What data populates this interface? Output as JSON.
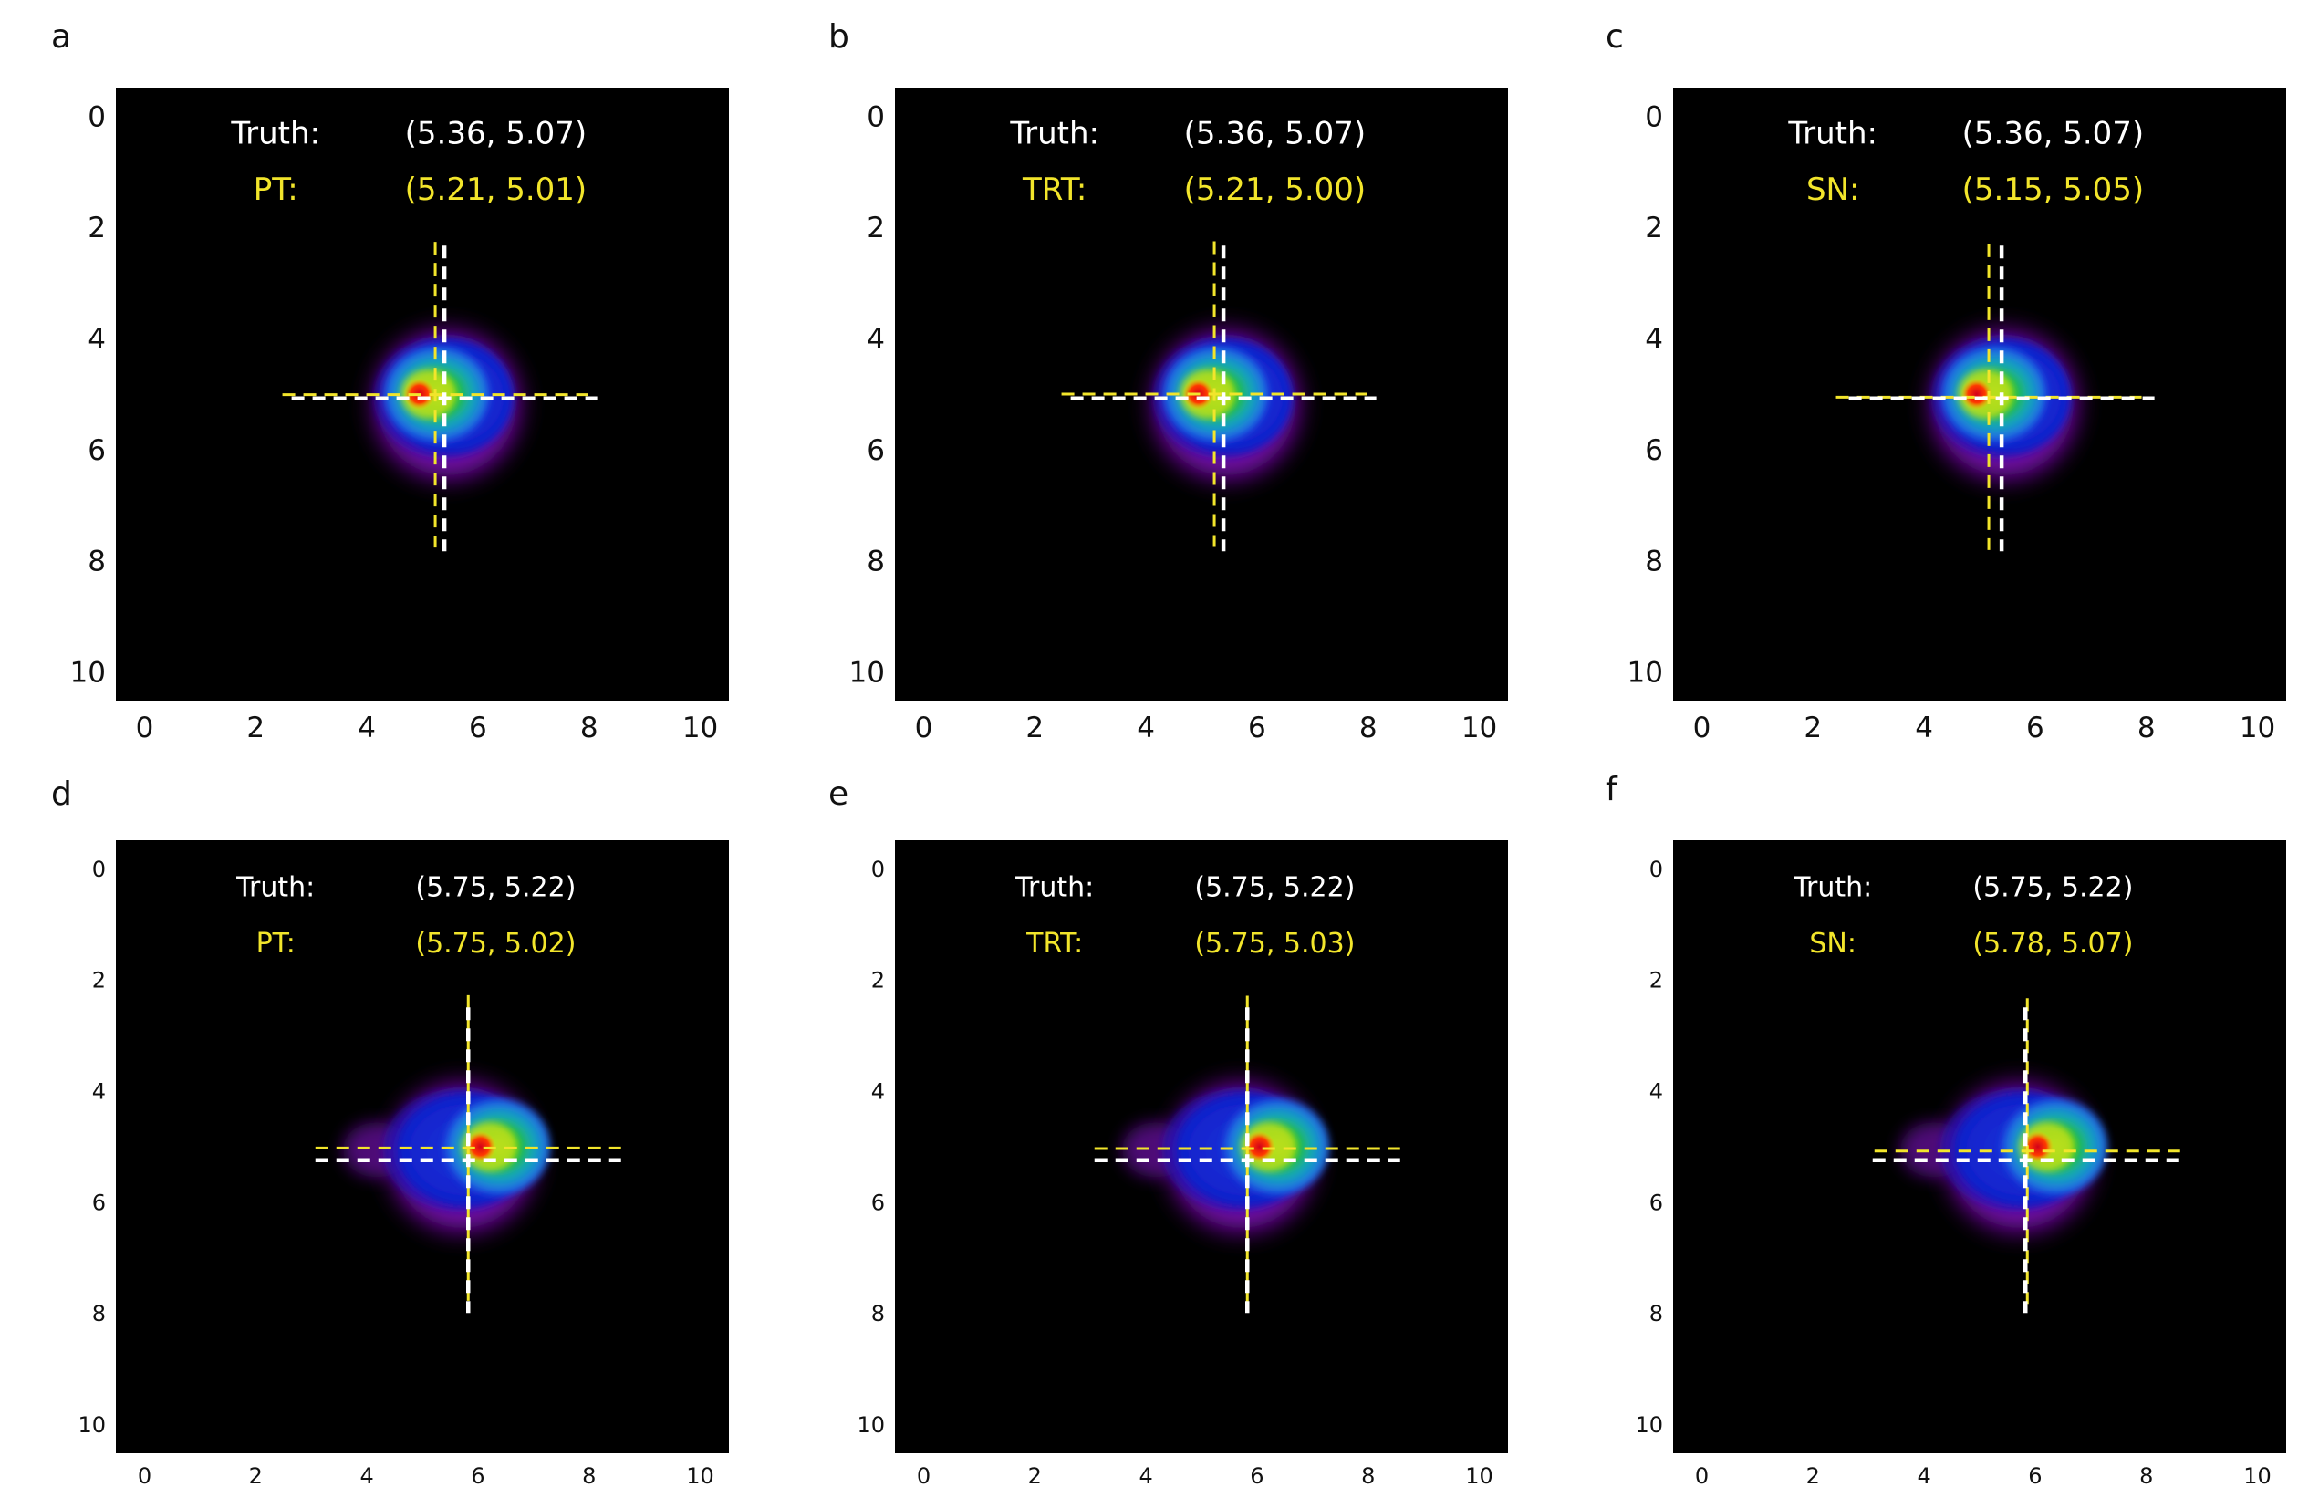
{
  "chart_data": [
    {
      "type": "heatmap",
      "panel": "a",
      "xlim": [
        0,
        10
      ],
      "ylim": [
        0,
        10
      ],
      "y_inverted": true,
      "xticks": [
        "0",
        "2",
        "4",
        "6",
        "8",
        "10"
      ],
      "yticks": [
        "0",
        "2",
        "4",
        "6",
        "8",
        "10"
      ],
      "colormap": "nipy_spectral (black → purple → blue → green → yellow → red)",
      "peak": {
        "x": 5.0,
        "y": 5.0
      },
      "truth": {
        "label": "Truth:",
        "text": "(5.36, 5.07)",
        "x": 5.36,
        "y": 5.07,
        "color": "#ffffff"
      },
      "estimate": {
        "label": "PT:",
        "text": "(5.21, 5.01)",
        "x": 5.21,
        "y": 5.01,
        "color": "#f2e52b"
      }
    },
    {
      "type": "heatmap",
      "panel": "b",
      "xlim": [
        0,
        10
      ],
      "ylim": [
        0,
        10
      ],
      "y_inverted": true,
      "xticks": [
        "0",
        "2",
        "4",
        "6",
        "8",
        "10"
      ],
      "yticks": [
        "0",
        "2",
        "4",
        "6",
        "8",
        "10"
      ],
      "colormap": "nipy_spectral (black → purple → blue → green → yellow → red)",
      "peak": {
        "x": 5.0,
        "y": 5.0
      },
      "truth": {
        "label": "Truth:",
        "text": "(5.36, 5.07)",
        "x": 5.36,
        "y": 5.07,
        "color": "#ffffff"
      },
      "estimate": {
        "label": "TRT:",
        "text": "(5.21, 5.00)",
        "x": 5.21,
        "y": 5.0,
        "color": "#f2e52b"
      }
    },
    {
      "type": "heatmap",
      "panel": "c",
      "xlim": [
        0,
        10
      ],
      "ylim": [
        0,
        10
      ],
      "y_inverted": true,
      "xticks": [
        "0",
        "2",
        "4",
        "6",
        "8",
        "10"
      ],
      "yticks": [
        "0",
        "2",
        "4",
        "6",
        "8",
        "10"
      ],
      "colormap": "nipy_spectral (black → purple → blue → green → yellow → red)",
      "peak": {
        "x": 5.0,
        "y": 5.0
      },
      "truth": {
        "label": "Truth:",
        "text": "(5.36, 5.07)",
        "x": 5.36,
        "y": 5.07,
        "color": "#ffffff"
      },
      "estimate": {
        "label": "SN:",
        "text": "(5.15, 5.05)",
        "x": 5.15,
        "y": 5.05,
        "color": "#f2e52b"
      }
    },
    {
      "type": "heatmap",
      "panel": "d",
      "xlim": [
        0,
        10
      ],
      "ylim": [
        0,
        10
      ],
      "y_inverted": true,
      "xticks": [
        "0",
        "2",
        "4",
        "6",
        "8",
        "10"
      ],
      "yticks": [
        "0",
        "2",
        "4",
        "6",
        "8",
        "10"
      ],
      "colormap": "nipy_spectral (black → purple → blue → green → yellow → red)",
      "peak": {
        "x": 6.0,
        "y": 5.0
      },
      "truth": {
        "label": "Truth:",
        "text": "(5.75, 5.22)",
        "x": 5.75,
        "y": 5.22,
        "color": "#ffffff"
      },
      "estimate": {
        "label": "PT:",
        "text": "(5.75, 5.02)",
        "x": 5.75,
        "y": 5.02,
        "color": "#f2e52b"
      }
    },
    {
      "type": "heatmap",
      "panel": "e",
      "xlim": [
        0,
        10
      ],
      "ylim": [
        0,
        10
      ],
      "y_inverted": true,
      "xticks": [
        "0",
        "2",
        "4",
        "6",
        "8",
        "10"
      ],
      "yticks": [
        "0",
        "2",
        "4",
        "6",
        "8",
        "10"
      ],
      "colormap": "nipy_spectral (black → purple → blue → green → yellow → red)",
      "peak": {
        "x": 6.0,
        "y": 5.0
      },
      "truth": {
        "label": "Truth:",
        "text": "(5.75, 5.22)",
        "x": 5.75,
        "y": 5.22,
        "color": "#ffffff"
      },
      "estimate": {
        "label": "TRT:",
        "text": "(5.75, 5.03)",
        "x": 5.75,
        "y": 5.03,
        "color": "#f2e52b"
      }
    },
    {
      "type": "heatmap",
      "panel": "f",
      "xlim": [
        0,
        10
      ],
      "ylim": [
        0,
        10
      ],
      "y_inverted": true,
      "xticks": [
        "0",
        "2",
        "4",
        "6",
        "8",
        "10"
      ],
      "yticks": [
        "0",
        "2",
        "4",
        "6",
        "8",
        "10"
      ],
      "colormap": "nipy_spectral (black → purple → blue → green → yellow → red)",
      "peak": {
        "x": 6.0,
        "y": 5.0
      },
      "truth": {
        "label": "Truth:",
        "text": "(5.75, 5.22)",
        "x": 5.75,
        "y": 5.22,
        "color": "#ffffff"
      },
      "estimate": {
        "label": "SN:",
        "text": "(5.78, 5.07)",
        "x": 5.78,
        "y": 5.07,
        "color": "#f2e52b"
      }
    }
  ]
}
